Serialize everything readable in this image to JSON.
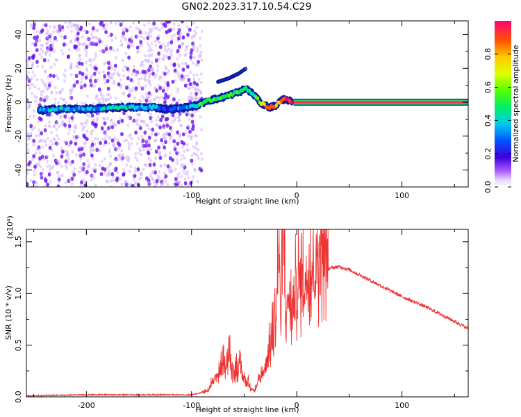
{
  "title": "GN02.2023.317.10.54.C29",
  "colors": {
    "snr_line": "#ee3333",
    "spec_scatter": "#7a1cf0",
    "spec_band": "#0a1aa0"
  },
  "chart_data": [
    {
      "type": "heatmap",
      "name": "spectrogram",
      "xlabel": "Height of straight line (km)",
      "ylabel": "Frequency (Hz)",
      "xlim": [
        -257,
        163
      ],
      "ylim": [
        -50,
        48
      ],
      "xticks": [
        -200,
        -100,
        0,
        100
      ],
      "xtick_labels": [
        "-200",
        "-100",
        "0",
        "100"
      ],
      "yticks": [
        -40,
        -20,
        0,
        20,
        40
      ],
      "ytick_labels": [
        "-40",
        "-20",
        "0",
        "20",
        "40"
      ],
      "colorbar": {
        "label": "Normalized spectral amplitude",
        "range": [
          0,
          1
        ],
        "ticks": [
          0.0,
          0.2,
          0.4,
          0.6,
          0.8
        ],
        "tick_labels": [
          "0.0",
          "0.2",
          "0.4",
          "0.6",
          "0.8"
        ]
      },
      "trace": {
        "x": [
          -245,
          -230,
          -210,
          -190,
          -170,
          -150,
          -135,
          -125,
          -115,
          -105,
          -95,
          -85,
          -75,
          -65,
          -55,
          -48,
          -40,
          -35,
          -30,
          -25,
          -20,
          -15,
          -10,
          -5,
          0,
          50,
          100,
          163
        ],
        "y": [
          -5,
          -4,
          -4,
          -4,
          -3,
          -3,
          -3,
          -4,
          -4,
          -3,
          -2,
          1,
          2,
          4,
          6,
          8,
          4,
          0,
          -2,
          -3,
          -2,
          1,
          2,
          0,
          0,
          0,
          0,
          0
        ],
        "amplitude": [
          0.25,
          0.35,
          0.3,
          0.3,
          0.35,
          0.3,
          0.3,
          0.2,
          0.2,
          0.3,
          0.4,
          0.45,
          0.45,
          0.45,
          0.45,
          0.4,
          0.45,
          0.55,
          0.75,
          0.8,
          0.75,
          0.8,
          0.85,
          0.9,
          0.95,
          0.95,
          0.95,
          0.95
        ]
      },
      "secondary_trace": {
        "x": [
          -75,
          -65,
          -55,
          -48
        ],
        "y": [
          12,
          14,
          17,
          20
        ]
      },
      "noise_region_x": [
        -257,
        -100
      ]
    },
    {
      "type": "line",
      "name": "snr",
      "xlabel": "Height of straight line (km)",
      "ylabel": "SNR (10 * v/v)",
      "y_multiplier": "(x10⁴)",
      "xlim": [
        -257,
        163
      ],
      "ylim": [
        0,
        1.62
      ],
      "xticks": [
        -200,
        -100,
        0,
        100
      ],
      "xtick_labels": [
        "-200",
        "-100",
        "0",
        "100"
      ],
      "yticks": [
        0.0,
        0.5,
        1.0,
        1.5
      ],
      "ytick_labels": [
        "0.0",
        "0.5",
        "1.0",
        "1.5"
      ],
      "x": [
        -257,
        -200,
        -150,
        -100,
        -85,
        -70,
        -65,
        -60,
        -55,
        -50,
        -45,
        -40,
        -35,
        -30,
        -25,
        -20,
        -17,
        -15,
        -13,
        -11,
        -10,
        -8,
        -5,
        -2,
        0,
        5,
        10,
        15,
        20,
        25,
        30,
        40,
        50,
        75,
        100,
        125,
        150,
        163
      ],
      "y": [
        0.01,
        0.02,
        0.02,
        0.02,
        0.05,
        0.25,
        0.35,
        0.2,
        0.25,
        0.15,
        0.1,
        0.05,
        0.15,
        0.25,
        0.4,
        0.6,
        1.3,
        0.6,
        1.55,
        0.8,
        0.6,
        0.9,
        0.7,
        0.85,
        0.9,
        0.95,
        1.0,
        1.05,
        1.15,
        1.2,
        1.24,
        1.26,
        1.23,
        1.1,
        0.97,
        0.86,
        0.73,
        0.66
      ]
    }
  ]
}
